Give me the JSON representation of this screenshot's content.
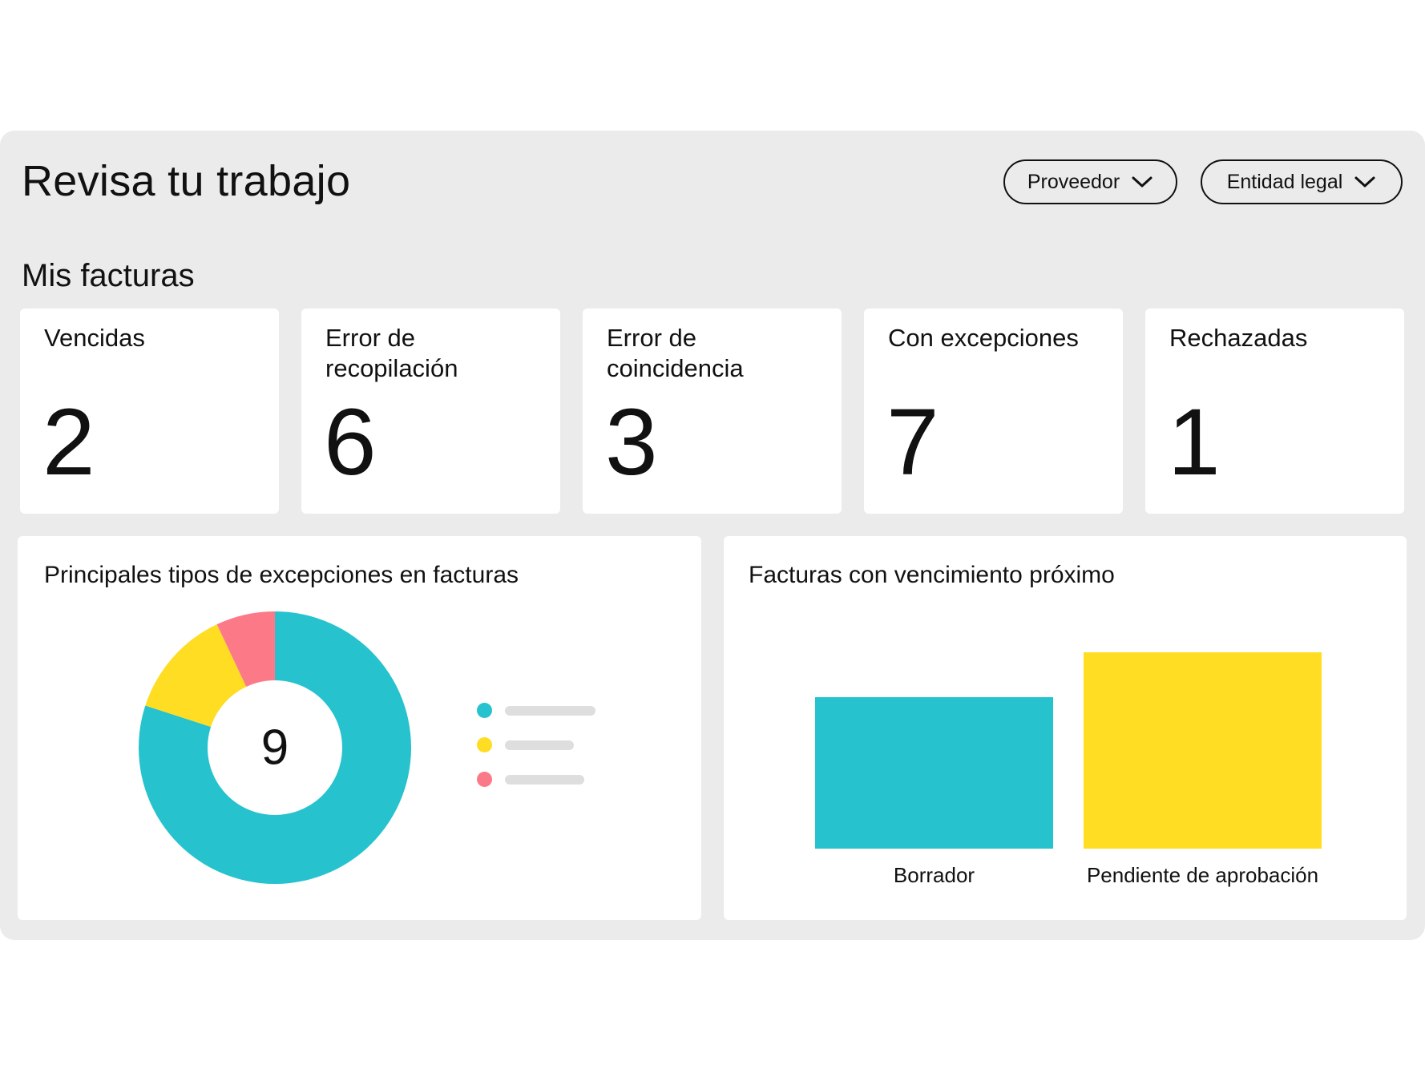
{
  "header": {
    "title": "Revisa tu trabajo"
  },
  "filters": [
    {
      "label": "Proveedor",
      "icon": "chevron-down-icon"
    },
    {
      "label": "Entidad legal",
      "icon": "chevron-down-icon"
    }
  ],
  "section_title": "Mis facturas",
  "stats": [
    {
      "label": "Vencidas",
      "value": "2"
    },
    {
      "label": "Error de recopilación",
      "value": "6"
    },
    {
      "label": "Error de coincidencia",
      "value": "3"
    },
    {
      "label": "Con excepciones",
      "value": "7"
    },
    {
      "label": "Rechazadas",
      "value": "1"
    }
  ],
  "exceptions_card": {
    "title": "Principales tipos de excepciones en facturas",
    "total": "9"
  },
  "due_card": {
    "title": "Facturas con vencimiento próximo"
  },
  "chart_data": [
    {
      "type": "pie",
      "donut": true,
      "center_label": "9",
      "slices": [
        {
          "value": 0.8,
          "color": "#26c2ce"
        },
        {
          "value": 0.13,
          "color": "#ffdd22"
        },
        {
          "value": 0.07,
          "color": "#fc7a88"
        }
      ],
      "legend": {
        "placement": "right",
        "labels_hidden": true
      }
    },
    {
      "type": "bar",
      "categories": [
        "Borrador",
        "Pendiente de aprobación"
      ],
      "values": [
        0.77,
        1.0
      ],
      "colors": [
        "#26c2ce",
        "#ffdd22"
      ],
      "ylim": [
        0,
        1
      ],
      "grid": false
    }
  ]
}
